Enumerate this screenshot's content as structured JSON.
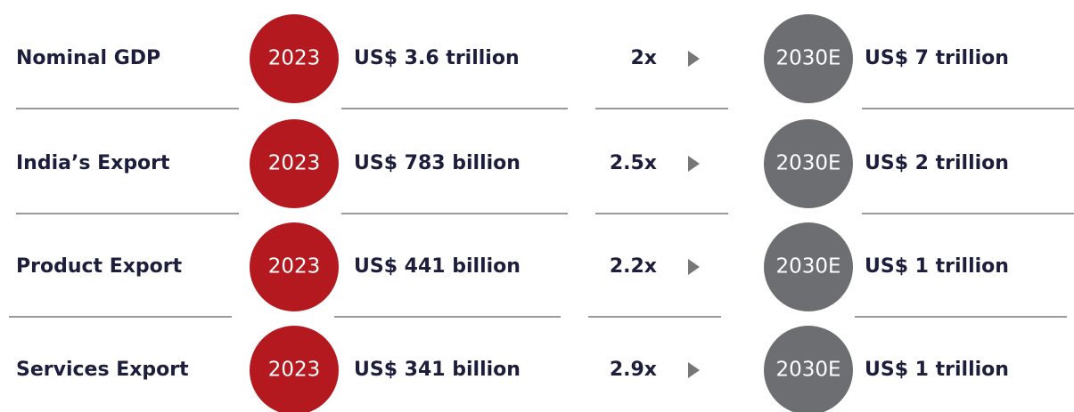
{
  "rows": [
    {
      "label": "Nominal GDP",
      "year_from": "2023",
      "value_from": "US$ 3.6 trillion",
      "multiplier": "2x",
      "year_to": "2030E",
      "value_to": "US$ 7 trillion"
    },
    {
      "label": "India’s Export",
      "year_from": "2023",
      "value_from": "US$ 783 billion",
      "multiplier": "2.5x",
      "year_to": "2030E",
      "value_to": "US$ 2 trillion"
    },
    {
      "label": "Product Export",
      "year_from": "2023",
      "value_from": "US$ 441 billion",
      "multiplier": "2.2x",
      "year_to": "2030E",
      "value_to": "US$ 1 trillion"
    },
    {
      "label": "Services Export",
      "year_from": "2023",
      "value_from": "US$ 341 billion",
      "multiplier": "2.9x",
      "year_to": "2030E",
      "value_to": "US$ 1 trillion"
    }
  ]
}
